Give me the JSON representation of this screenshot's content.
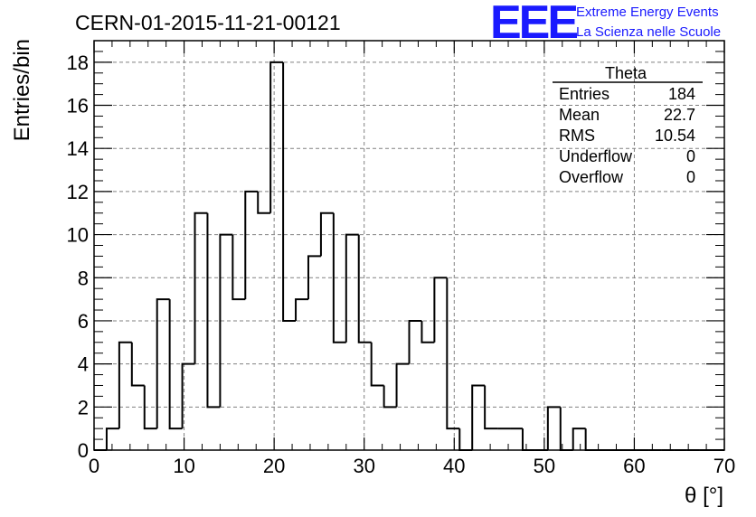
{
  "title": "CERN-01-2015-11-21-00121",
  "logo": {
    "mark": "EEE",
    "line1": "Extreme Energy Events",
    "line2": "La Scienza nelle Scuole",
    "color": "#1a1aff"
  },
  "stats": {
    "name": "Theta",
    "rows": [
      {
        "label": "Entries",
        "value": "184"
      },
      {
        "label": "Mean",
        "value": "22.7"
      },
      {
        "label": "RMS",
        "value": "10.54"
      },
      {
        "label": "Underflow",
        "value": "0"
      },
      {
        "label": "Overflow",
        "value": "0"
      }
    ]
  },
  "chart_data": {
    "type": "bar",
    "histogram": true,
    "title": "CERN-01-2015-11-21-00121",
    "xlabel": "θ [°]",
    "ylabel": "Entries/bin",
    "xlim": [
      0,
      70
    ],
    "ylim": [
      0,
      19
    ],
    "bin_width": 1.4,
    "x_ticks": [
      "0",
      "10",
      "20",
      "30",
      "40",
      "50",
      "60",
      "70"
    ],
    "y_ticks": [
      "0",
      "2",
      "4",
      "6",
      "8",
      "10",
      "12",
      "14",
      "16",
      "18"
    ],
    "bin_edges": [
      0,
      1.4,
      2.8,
      4.2,
      5.6,
      7.0,
      8.4,
      9.8,
      11.2,
      12.6,
      14.0,
      15.4,
      16.8,
      18.2,
      19.6,
      21.0,
      22.4,
      23.8,
      25.2,
      26.6,
      28.0,
      29.4,
      30.8,
      32.2,
      33.6,
      35.0,
      36.4,
      37.8,
      39.2,
      40.6,
      42.0,
      43.4,
      44.8,
      46.2,
      47.6,
      49.0,
      50.4,
      51.8,
      53.2,
      54.6,
      56.0,
      57.4,
      58.8,
      60.2,
      61.6,
      63.0,
      64.4,
      65.8,
      67.2,
      68.6,
      70.0
    ],
    "values": [
      0,
      1,
      5,
      3,
      1,
      7,
      1,
      4,
      11,
      2,
      10,
      7,
      12,
      11,
      18,
      6,
      7,
      9,
      11,
      5,
      10,
      5,
      3,
      2,
      4,
      6,
      5,
      8,
      1,
      0,
      3,
      1,
      1,
      1,
      0,
      0,
      2,
      0,
      1,
      0,
      0,
      0,
      0,
      0,
      0,
      0,
      0,
      0,
      0,
      0
    ],
    "grid": true,
    "line_color": "#000000",
    "grid_color": "#808080"
  }
}
